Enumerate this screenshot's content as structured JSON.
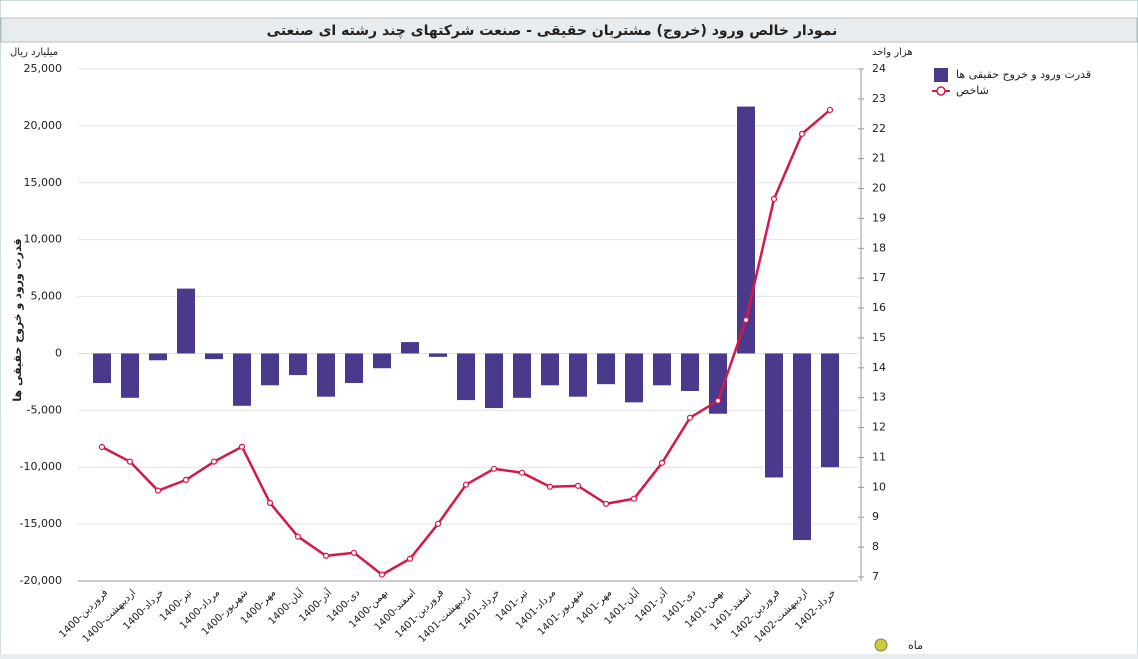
{
  "chart_data": {
    "type": "bar-line",
    "title": "نمودار خالص ورود (خروج) مشتریان حقیقی - صنعت شرکتهای چند رشته ای صنعتی",
    "y_axis_unit": "میلیارد ریال",
    "y2_axis_unit": "هزار واحد",
    "y_axis_title": "قدرت ورود و خروج حقیقی ها",
    "x_axis_title": "ماه",
    "categories": [
      "1400-فروردین",
      "1400-اردیبهشت",
      "1400-خرداد",
      "1400-تیر",
      "1400-مرداد",
      "1400-شهریور",
      "1400-مهر",
      "1400-آبان",
      "1400-آذر",
      "1400-دی",
      "1400-بهمن",
      "1400-اسفند",
      "1401-فروردین",
      "1401-اردیبهشت",
      "1401-خرداد",
      "1401-تیر",
      "1401-مرداد",
      "1401-شهریور",
      "1401-مهر",
      "1401-آبان",
      "1401-آذر",
      "1401-دی",
      "1401-بهمن",
      "1401-اسفند",
      "1402-فروردین",
      "1402-اردیبهشت",
      "1402-خرداد"
    ],
    "series": [
      {
        "name": "قدرت ورود و خروج حقیقی ها",
        "type": "bar",
        "color": "#4b3a8c",
        "values": [
          -2600,
          -3900,
          -600,
          5700,
          -500,
          -4600,
          -2800,
          -1900,
          -3800,
          -2600,
          -1300,
          1000,
          -300,
          -4100,
          -4800,
          -3900,
          -2800,
          -3800,
          -2700,
          -4300,
          -2800,
          -3300,
          -5300,
          21700,
          -10900,
          -16400,
          -10000
        ]
      },
      {
        "name": "شاخص",
        "type": "line",
        "axis": "y2",
        "color": "#d4184a",
        "values": [
          11.35,
          10.86,
          9.89,
          10.25,
          10.86,
          11.36,
          9.48,
          8.35,
          7.71,
          7.81,
          7.08,
          7.61,
          8.78,
          10.09,
          10.62,
          10.49,
          10.02,
          10.05,
          9.45,
          9.62,
          10.82,
          12.33,
          12.9,
          15.6,
          19.65,
          21.83,
          22.63
        ]
      }
    ],
    "ylim": [
      -20000,
      25000
    ],
    "yticks": [
      {
        "value": -20000,
        "label": "-20,000"
      },
      {
        "value": -15000,
        "label": "-15,000"
      },
      {
        "value": -10000,
        "label": "-10,000"
      },
      {
        "value": -5000,
        "label": "-5,000"
      },
      0,
      {
        "value": 5000,
        "label": "5,000"
      },
      {
        "value": 10000,
        "label": "10,000"
      },
      {
        "value": 15000,
        "label": "15,000"
      },
      {
        "value": 20000,
        "label": "20,000"
      },
      {
        "value": 25000,
        "label": "25,000"
      }
    ],
    "y2lim": [
      7,
      24
    ],
    "y2ticks": [
      7,
      8,
      9,
      10,
      11,
      12,
      13,
      14,
      15,
      16,
      17,
      18,
      19,
      20,
      21,
      22,
      23,
      24
    ],
    "grid": true
  }
}
